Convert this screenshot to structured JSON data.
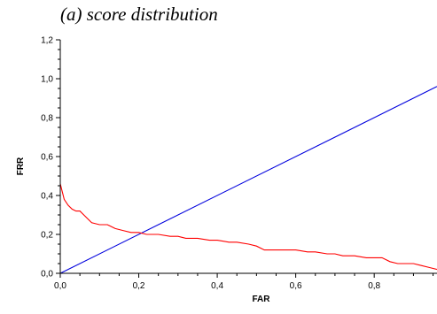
{
  "caption": "(a) score distribution",
  "chart_data": {
    "type": "line",
    "xlabel": "FAR",
    "ylabel": "FRR",
    "xlim": [
      0,
      0.96
    ],
    "ylim": [
      0,
      1.2
    ],
    "x_ticks": [
      "0,0",
      "0,2",
      "0,4",
      "0,6",
      "0,8"
    ],
    "y_ticks": [
      "0,0",
      "0,2",
      "0,4",
      "0,6",
      "0,8",
      "1,0",
      "1,2"
    ],
    "grid": false,
    "legend": "none",
    "series": [
      {
        "color": "#0000dd",
        "x": [
          0.0,
          0.96
        ],
        "y": [
          0.0,
          0.96
        ]
      },
      {
        "color": "#ff0000",
        "x": [
          0.0,
          0.005,
          0.01,
          0.02,
          0.03,
          0.04,
          0.05,
          0.06,
          0.07,
          0.08,
          0.1,
          0.12,
          0.14,
          0.16,
          0.18,
          0.2,
          0.22,
          0.25,
          0.28,
          0.3,
          0.32,
          0.35,
          0.38,
          0.4,
          0.43,
          0.45,
          0.48,
          0.5,
          0.52,
          0.55,
          0.58,
          0.6,
          0.63,
          0.65,
          0.68,
          0.7,
          0.72,
          0.75,
          0.78,
          0.8,
          0.82,
          0.84,
          0.86,
          0.88,
          0.9,
          0.92,
          0.94,
          0.96
        ],
        "y": [
          0.46,
          0.42,
          0.38,
          0.35,
          0.33,
          0.32,
          0.32,
          0.3,
          0.28,
          0.26,
          0.25,
          0.25,
          0.23,
          0.22,
          0.21,
          0.21,
          0.2,
          0.2,
          0.19,
          0.19,
          0.18,
          0.18,
          0.17,
          0.17,
          0.16,
          0.16,
          0.15,
          0.14,
          0.12,
          0.12,
          0.12,
          0.12,
          0.11,
          0.11,
          0.1,
          0.1,
          0.09,
          0.09,
          0.08,
          0.08,
          0.08,
          0.06,
          0.05,
          0.05,
          0.05,
          0.04,
          0.03,
          0.02
        ]
      }
    ]
  }
}
